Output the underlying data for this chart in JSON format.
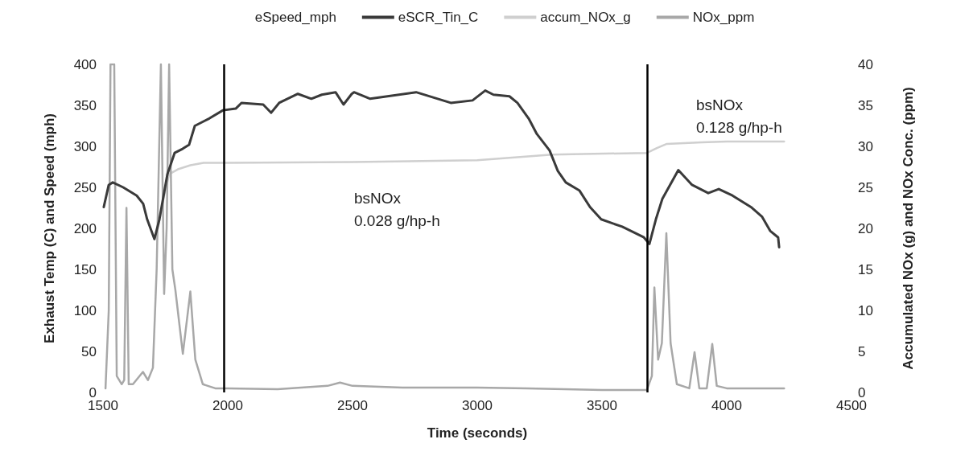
{
  "chart_data": {
    "type": "line",
    "xlabel": "Time (seconds)",
    "ylabel": "Exhaust Temp (C) and Speed (mph)",
    "y2label": "Accumulated NOx (g) and NOx Conc. (ppm)",
    "xlim": [
      1500,
      4500
    ],
    "xticks": [
      1500,
      2000,
      2500,
      3000,
      3500,
      4000,
      4500
    ],
    "ylim": [
      0,
      400
    ],
    "yticks": [
      0,
      50,
      100,
      150,
      200,
      250,
      300,
      350,
      400
    ],
    "y2lim": [
      0,
      40
    ],
    "y2ticks": [
      0,
      5,
      10,
      15,
      20,
      25,
      30,
      35,
      40
    ],
    "grid": false,
    "legend": "top",
    "marker": "none",
    "line_style": "solid",
    "series": [
      {
        "name": "eSpeed_mph"
      },
      {
        "name": "eSCR_Tin_C",
        "color": "#3a3a3a",
        "x": [
          1503,
          1523,
          1539,
          1581,
          1635,
          1661,
          1677,
          1706,
          1726,
          1758,
          1787,
          1819,
          1845,
          1868,
          1926,
          1981,
          2032,
          2055,
          2142,
          2174,
          2206,
          2281,
          2335,
          2377,
          2432,
          2464,
          2497,
          2506,
          2571,
          2755,
          2894,
          2981,
          3032,
          3065,
          3129,
          3161,
          3206,
          3239,
          3290,
          3323,
          3355,
          3410,
          3452,
          3497,
          3581,
          3668,
          3690,
          3716,
          3742,
          3806,
          3861,
          3926,
          3968,
          4023,
          4097,
          4142,
          4174,
          4206,
          4210
        ],
        "values": [
          226,
          253,
          256,
          250,
          240,
          230,
          211,
          187,
          211,
          266,
          292,
          297,
          302,
          325,
          334,
          344,
          346,
          353,
          351,
          341,
          353,
          364,
          358,
          363,
          366,
          351,
          364,
          366,
          358,
          366,
          353,
          356,
          368,
          363,
          361,
          353,
          334,
          315,
          295,
          270,
          256,
          246,
          226,
          211,
          202,
          189,
          181,
          211,
          236,
          271,
          253,
          243,
          248,
          240,
          226,
          214,
          197,
          189,
          177
        ]
      },
      {
        "name": "accum_NOx_g",
        "color": "#cfcfcf",
        "axis": "y2",
        "x": [
          1720,
          1745,
          1765,
          1800,
          1850,
          1903,
          2000,
          2500,
          3000,
          3300,
          3680,
          3720,
          3760,
          3900,
          4000,
          4230
        ],
        "values": [
          20,
          24,
          26.6,
          27.2,
          27.7,
          28,
          28,
          28.1,
          28.3,
          29,
          29.2,
          29.8,
          30.3,
          30.5,
          30.6,
          30.6
        ]
      },
      {
        "name": "NOx_ppm",
        "color": "#a8a8a8",
        "axis": "y2",
        "x": [
          1510,
          1523,
          1530,
          1545,
          1555,
          1575,
          1585,
          1594,
          1603,
          1620,
          1660,
          1680,
          1700,
          1715,
          1732,
          1745,
          1755,
          1765,
          1778,
          1790,
          1820,
          1850,
          1870,
          1900,
          1950,
          2000,
          2200,
          2400,
          2450,
          2500,
          2700,
          3000,
          3200,
          3500,
          3680,
          3700,
          3710,
          3725,
          3740,
          3758,
          3775,
          3800,
          3850,
          3871,
          3890,
          3920,
          3942,
          3960,
          4000,
          4230
        ],
        "values": [
          0.5,
          10,
          40,
          40,
          2,
          1,
          1.5,
          22.5,
          1,
          1,
          2.5,
          1.5,
          3,
          15,
          40,
          12,
          20,
          40,
          15,
          12.5,
          4.7,
          12.3,
          4,
          1,
          0.5,
          0.5,
          0.4,
          0.8,
          1.2,
          0.8,
          0.6,
          0.6,
          0.5,
          0.3,
          0.3,
          2,
          12.8,
          4,
          6,
          19.4,
          6,
          1,
          0.5,
          4.9,
          0.5,
          0.5,
          5.9,
          0.8,
          0.5,
          0.5
        ]
      }
    ],
    "ref_lines": [
      {
        "axis": "x",
        "value": 1985,
        "color": "#000000"
      },
      {
        "axis": "x",
        "value": 3680,
        "color": "#000000"
      }
    ],
    "annotations": [
      "bsNOx\n0.028 g/hp-h",
      "bsNOx\n0.128 g/hp-h"
    ]
  }
}
